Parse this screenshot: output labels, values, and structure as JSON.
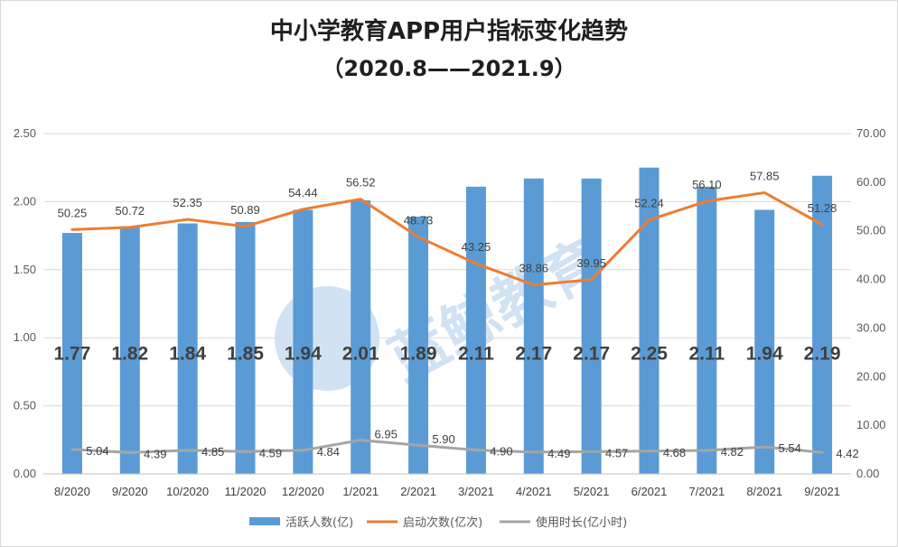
{
  "title": "中小学教育APP用户指标变化趋势",
  "subtitle": "（2020.8——2021.9）",
  "watermark": "蓝鲸教育 Lanjing Education",
  "chart_data": {
    "type": "bar",
    "categories": [
      "8/2020",
      "9/2020",
      "10/2020",
      "11/2020",
      "12/2020",
      "1/2021",
      "2/2021",
      "3/2021",
      "4/2021",
      "5/2021",
      "6/2021",
      "7/2021",
      "8/2021",
      "9/2021"
    ],
    "series": [
      {
        "name": "活跃人数(亿)",
        "type": "bar",
        "axis": "left",
        "color": "#5b9bd5",
        "values": [
          1.77,
          1.82,
          1.84,
          1.85,
          1.94,
          2.01,
          1.89,
          2.11,
          2.17,
          2.17,
          2.25,
          2.11,
          1.94,
          2.19
        ],
        "labels": [
          "1.77",
          "1.82",
          "1.84",
          "1.85",
          "1.94",
          "2.01",
          "1.89",
          "2.11",
          "2.17",
          "2.17",
          "2.25",
          "2.11",
          "1.94",
          "2.19"
        ]
      },
      {
        "name": "启动次数(亿次)",
        "type": "line",
        "axis": "right",
        "color": "#ed7d31",
        "values": [
          50.25,
          50.72,
          52.35,
          50.89,
          54.44,
          56.52,
          48.73,
          43.25,
          38.86,
          39.95,
          52.24,
          56.1,
          57.85,
          51.28
        ],
        "labels": [
          "50.25",
          "50.72",
          "52.35",
          "50.89",
          "54.44",
          "56.52",
          "48.73",
          "43.25",
          "38.86",
          "39.95",
          "52.24",
          "56.10",
          "57.85",
          "51.28"
        ]
      },
      {
        "name": "使用时长(亿小时)",
        "type": "line",
        "axis": "right",
        "color": "#a5a5a5",
        "values": [
          5.04,
          4.39,
          4.85,
          4.59,
          4.84,
          6.95,
          5.9,
          4.9,
          4.49,
          4.57,
          4.68,
          4.82,
          5.54,
          4.42
        ],
        "labels": [
          "5.04",
          "4.39",
          "4.85",
          "4.59",
          "4.84",
          "6.95",
          "5.90",
          "4.90",
          "4.49",
          "4.57",
          "4.68",
          "4.82",
          "5.54",
          "4.42"
        ]
      }
    ],
    "y_left": {
      "min": 0,
      "max": 2.5,
      "ticks": [
        "0.00",
        "0.50",
        "1.00",
        "1.50",
        "2.00",
        "2.50"
      ]
    },
    "y_right": {
      "min": 0,
      "max": 70,
      "ticks": [
        "0.00",
        "10.00",
        "20.00",
        "30.00",
        "40.00",
        "50.00",
        "60.00",
        "70.00"
      ]
    },
    "grid": true,
    "legend_position": "bottom"
  }
}
